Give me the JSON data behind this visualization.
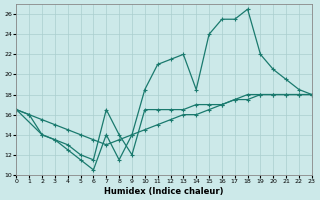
{
  "xlabel": "Humidex (Indice chaleur)",
  "bg_color": "#cce9e9",
  "grid_color": "#aacece",
  "line_color": "#1a7a6e",
  "xlim": [
    0,
    23
  ],
  "ylim": [
    10,
    27
  ],
  "xticks": [
    0,
    1,
    2,
    3,
    4,
    5,
    6,
    7,
    8,
    9,
    10,
    11,
    12,
    13,
    14,
    15,
    16,
    17,
    18,
    19,
    20,
    21,
    22,
    23
  ],
  "yticks": [
    10,
    12,
    14,
    16,
    18,
    20,
    22,
    24,
    26
  ],
  "line1_x": [
    0,
    1,
    2,
    3,
    4,
    5,
    6,
    7,
    8,
    9,
    10,
    11,
    12,
    13,
    14,
    15,
    16,
    17,
    18,
    19,
    20,
    21,
    22,
    23
  ],
  "line1_y": [
    16.5,
    16.0,
    14.0,
    13.5,
    12.5,
    11.5,
    10.5,
    14.0,
    11.5,
    14.0,
    18.5,
    21.0,
    21.5,
    22.0,
    18.5,
    24.0,
    25.5,
    25.5,
    26.5,
    22.0,
    20.5,
    19.5,
    18.5,
    18.0
  ],
  "line2_x": [
    0,
    2,
    3,
    4,
    5,
    6,
    7,
    8,
    9,
    10,
    11,
    12,
    13,
    14,
    15,
    16,
    17,
    18,
    19,
    20,
    21,
    22,
    23
  ],
  "line2_y": [
    16.5,
    14.0,
    13.5,
    13.0,
    12.0,
    11.5,
    16.5,
    14.0,
    12.0,
    16.5,
    16.5,
    16.5,
    16.5,
    17.0,
    17.0,
    17.0,
    17.5,
    18.0,
    18.0,
    18.0,
    18.0,
    18.0,
    18.0
  ],
  "line3_x": [
    0,
    1,
    2,
    3,
    4,
    5,
    6,
    7,
    8,
    9,
    10,
    11,
    12,
    13,
    14,
    15,
    16,
    17,
    18,
    19,
    20,
    21,
    22,
    23
  ],
  "line3_y": [
    16.5,
    16.0,
    15.5,
    15.0,
    14.5,
    14.0,
    13.5,
    13.0,
    13.5,
    14.0,
    14.5,
    15.0,
    15.5,
    16.0,
    16.0,
    16.5,
    17.0,
    17.5,
    17.5,
    18.0,
    18.0,
    18.0,
    18.0,
    18.0
  ]
}
